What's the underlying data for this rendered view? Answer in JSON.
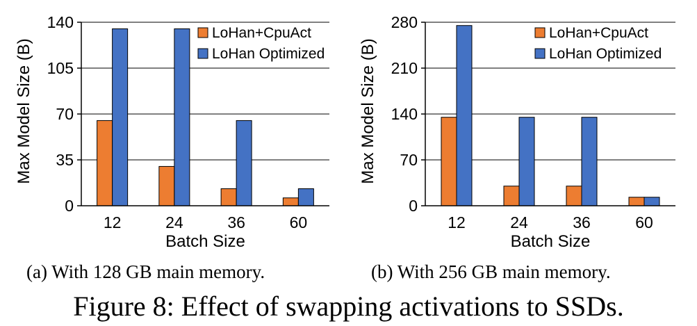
{
  "chart_data": [
    {
      "type": "bar",
      "subcaption": "(a) With 128 GB main memory.",
      "xlabel": "Batch Size",
      "ylabel": "Max Model Size (B)",
      "categories": [
        "12",
        "24",
        "36",
        "60"
      ],
      "yticks": [
        "0",
        "35",
        "70",
        "105",
        "140"
      ],
      "ylim": [
        0,
        140
      ],
      "legend_position": "top-right",
      "series": [
        {
          "name": "LoHan+CpuAct",
          "color": "#ED7D31",
          "values": [
            65,
            30,
            13,
            6
          ]
        },
        {
          "name": "LoHan Optimized",
          "color": "#4472C4",
          "values": [
            135,
            135,
            65,
            13
          ]
        }
      ]
    },
    {
      "type": "bar",
      "subcaption": "(b) With 256 GB main memory.",
      "xlabel": "Batch Size",
      "ylabel": "Max Model Size (B)",
      "categories": [
        "12",
        "24",
        "36",
        "60"
      ],
      "yticks": [
        "0",
        "70",
        "140",
        "210",
        "280"
      ],
      "ylim": [
        0,
        280
      ],
      "legend_position": "top-right",
      "series": [
        {
          "name": "LoHan+CpuAct",
          "color": "#ED7D31",
          "values": [
            135,
            30,
            30,
            13
          ]
        },
        {
          "name": "LoHan Optimized",
          "color": "#4472C4",
          "values": [
            275,
            135,
            135,
            13
          ]
        }
      ]
    }
  ],
  "figure_caption": "Figure 8: Effect of swapping activations to SSDs."
}
